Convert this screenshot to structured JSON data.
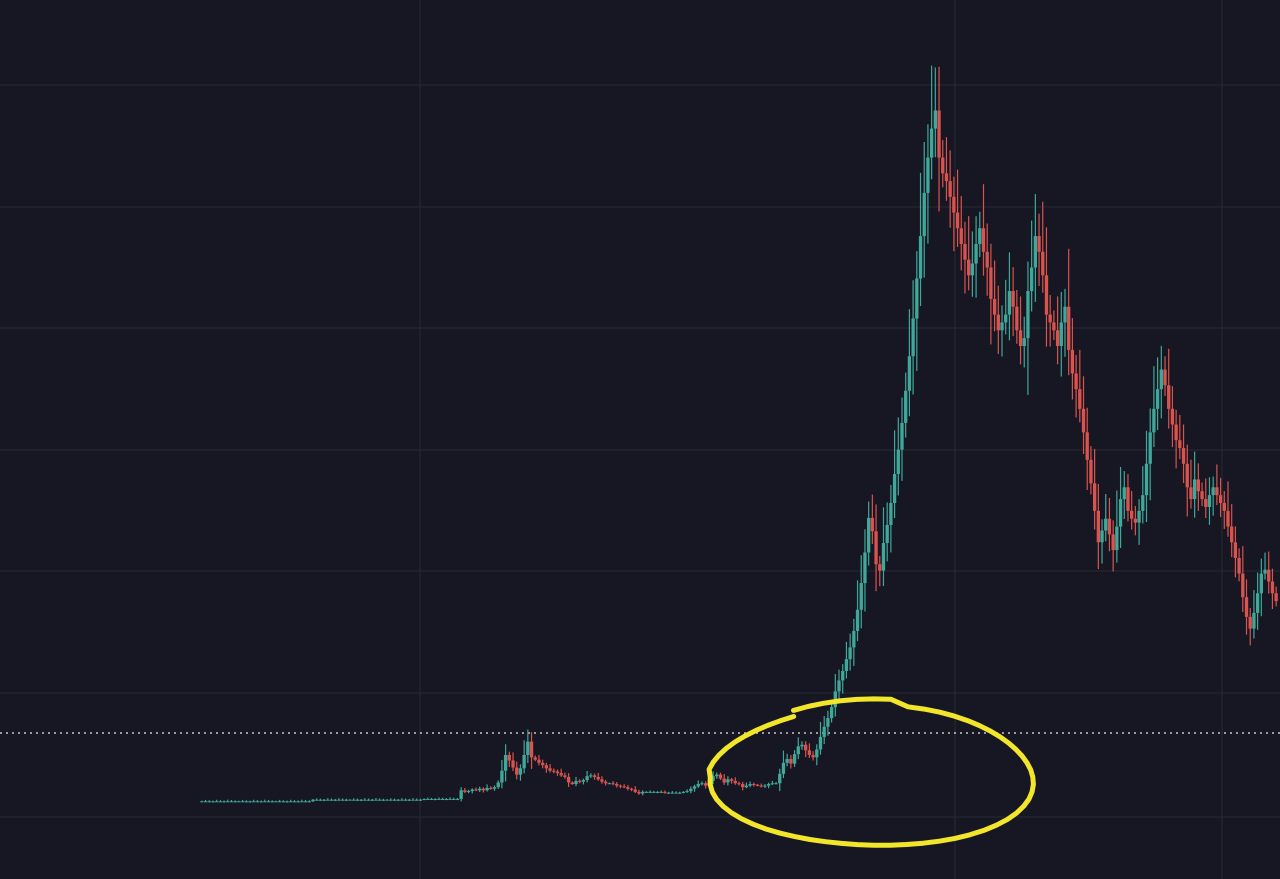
{
  "colors": {
    "background": "#161722",
    "grid": "#262a36",
    "up": "#3fa89a",
    "down": "#d9534f",
    "highlight": "#f2e52a",
    "reference_line": "#c8c8c8"
  },
  "chart_data": {
    "type": "candlestick",
    "grid": true,
    "xlim": [
      0,
      420
    ],
    "ylim": [
      0,
      100
    ],
    "reference_level": 15.5,
    "highlight_region": {
      "x_range": [
        200,
        325
      ],
      "shape": "ellipse"
    },
    "series": [
      {
        "close": [
          2,
          2,
          2,
          2,
          2,
          2,
          2,
          2,
          2,
          2,
          2,
          2,
          2,
          2,
          2,
          2,
          2,
          2,
          2,
          2,
          2,
          2,
          2,
          2,
          2,
          2,
          2,
          2,
          2,
          2,
          2.2,
          2.2,
          2.2,
          2.2,
          2.2,
          2.2,
          2.2,
          2.2,
          2.2,
          2.2,
          2.2,
          2.2,
          2.2,
          2.2,
          2.2,
          2.2,
          2.2,
          2.2,
          2.2,
          2.2,
          2.2,
          2.2,
          2.2,
          2.2,
          2.2,
          2.2,
          2.2,
          2.2,
          2.2,
          2.2,
          2.3,
          2.3,
          2.3,
          2.3,
          2.3,
          2.3,
          2.3,
          2.3,
          2.3,
          2.3,
          3.4,
          3.2,
          3.3,
          3.5,
          3.4,
          3.6,
          3.4,
          3.7,
          3.6,
          3.8,
          4.4,
          5.9,
          7.9,
          7.2,
          6.3,
          5.4,
          6.2,
          7.9,
          9.6,
          7.6,
          7.3,
          6.9,
          6.6,
          6.2,
          5.9,
          5.8,
          5.6,
          5.3,
          5.1,
          4.4,
          4.2,
          4.6,
          4.5,
          4.7,
          5.2,
          5.3,
          5.1,
          4.8,
          4.5,
          4.3,
          4.3,
          4.2,
          4.0,
          3.9,
          3.8,
          3.6,
          3.5,
          3.2,
          3.0,
          3.2,
          3.2,
          3.2,
          3.2,
          3.2,
          3.2,
          3.1,
          3.1,
          3.1,
          3.1,
          3.1,
          3.2,
          3.3,
          3.6,
          3.9,
          4.2,
          4.3,
          4.0,
          4.6,
          5.2,
          5.4,
          4.9,
          4.4,
          4.8,
          4.6,
          4.3,
          4.2,
          3.8,
          4.0,
          4.2,
          4.1,
          4.0,
          3.9,
          4.0,
          4.2,
          4.3,
          4.3,
          5.5,
          6.9,
          7.4,
          6.8,
          8.0,
          9.0,
          9.2,
          8.5,
          7.9,
          7.6,
          8.6,
          10.2,
          11.5,
          12.6,
          14.0,
          16.0,
          17.4,
          18.6,
          20.1,
          21.6,
          23.7,
          26.4,
          29.8,
          33.7,
          38.1,
          36.4,
          32.2,
          31.4,
          34.9,
          37.2,
          40.0,
          43.7,
          46.8,
          50.2,
          54.3,
          58.7,
          63.5,
          68.6,
          74.0,
          79.5,
          84.0,
          87.7,
          90.0,
          84.0,
          82.0,
          81.0,
          79.0,
          77.0,
          75.0,
          73.0,
          71.0,
          69.0,
          70.5,
          73.0,
          75.0,
          72.0,
          70.0,
          66.0,
          64.0,
          62.0,
          63.0,
          64.0,
          67.0,
          65.0,
          62.0,
          60.0,
          61.0,
          67.0,
          70.0,
          74.0,
          72.0,
          69.0,
          64.0,
          63.0,
          62.0,
          60.0,
          63.0,
          65.0,
          59.5,
          56.5,
          54.5,
          52.0,
          49.0,
          45.5,
          42.5,
          39.0,
          35.0,
          36.5,
          38.0,
          36.0,
          34.0,
          37.0,
          40.5,
          42.0,
          39.0,
          38.0,
          37.5,
          39.0,
          41.0,
          45.0,
          49.0,
          52.0,
          54.5,
          57.0,
          55.0,
          52.0,
          50.0,
          48.0,
          47.0,
          45.0,
          42.0,
          40.5,
          43.0,
          41.5,
          40.5,
          39.5,
          41.0,
          42.0,
          41.0,
          40.0,
          39.0,
          37.0,
          35.0,
          33.0,
          31.0,
          28.0,
          25.5,
          24.0,
          26.0,
          28.5,
          31.0,
          31.5,
          30.0,
          28.5,
          27.5
        ]
      }
    ]
  }
}
